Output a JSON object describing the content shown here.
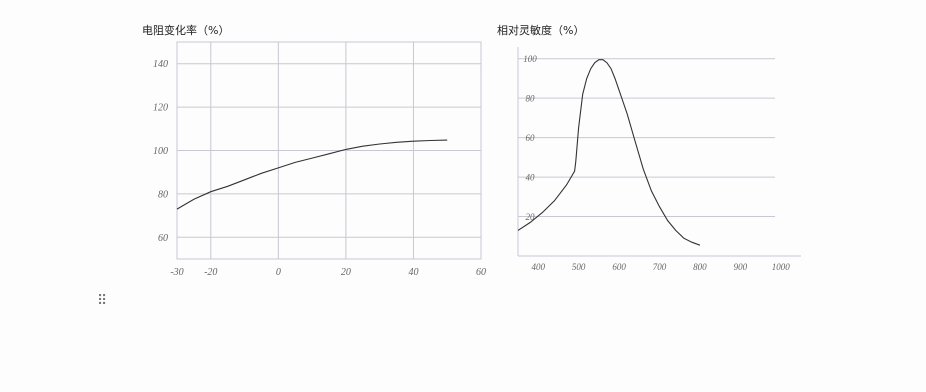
{
  "chart_data": [
    {
      "type": "line",
      "title": "电阻变化率（%）",
      "xlabel": "",
      "ylabel": "",
      "x_ticks": [
        -30,
        -20,
        0,
        20,
        40,
        60
      ],
      "y_ticks": [
        60,
        80,
        100,
        120,
        140
      ],
      "xlim": [
        -30,
        60
      ],
      "ylim": [
        50,
        150
      ],
      "grid": true,
      "series": [
        {
          "x": [
            -30,
            -25,
            -20,
            -15,
            -10,
            -5,
            0,
            5,
            10,
            15,
            20,
            25,
            30,
            35,
            40,
            45,
            50
          ],
          "y": [
            73,
            77.5,
            81,
            83.5,
            86.5,
            89.5,
            92,
            94.5,
            96.5,
            98.5,
            100.5,
            102,
            103,
            103.8,
            104.3,
            104.6,
            104.8
          ]
        }
      ]
    },
    {
      "type": "line",
      "title": "相对灵敏度（%）",
      "xlabel": "",
      "ylabel": "",
      "x_ticks": [
        400,
        500,
        600,
        700,
        800,
        900,
        1000
      ],
      "y_ticks": [
        20,
        40,
        60,
        80,
        100
      ],
      "xlim": [
        350,
        1050
      ],
      "ylim": [
        0,
        110
      ],
      "grid": true,
      "series": [
        {
          "x": [
            350,
            380,
            410,
            440,
            470,
            490,
            493,
            500,
            510,
            520,
            530,
            540,
            550,
            560,
            570,
            580,
            590,
            600,
            620,
            640,
            660,
            680,
            700,
            720,
            740,
            760,
            780,
            800
          ],
          "y": [
            13,
            17,
            22,
            28,
            36,
            43,
            48,
            65,
            82,
            90,
            95,
            98,
            99.5,
            99.5,
            98,
            95,
            90,
            84,
            72,
            58,
            44,
            33,
            25,
            18,
            13,
            9,
            7,
            5.5
          ]
        }
      ]
    }
  ]
}
